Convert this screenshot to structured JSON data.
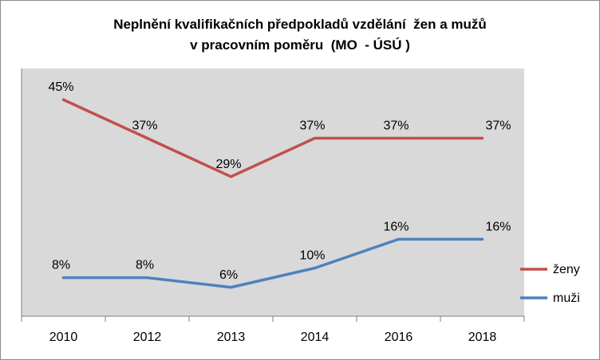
{
  "chart_data": {
    "type": "line",
    "title_line1": "Neplnění kvalifikačních předpokladů vzdělání  žen a mužů",
    "title_line2": "v pracovním poměru  (MO  - ÚSÚ )",
    "categories": [
      "2010",
      "2012",
      "2013",
      "2014",
      "2016",
      "2018"
    ],
    "series": [
      {
        "name": "ženy",
        "values": [
          45,
          37,
          29,
          37,
          37,
          37
        ],
        "data_labels": [
          "45%",
          "37%",
          "29%",
          "37%",
          "37%",
          "37%"
        ],
        "color": "#c0504d"
      },
      {
        "name": "muži",
        "values": [
          8,
          8,
          6,
          10,
          16,
          16
        ],
        "data_labels": [
          "8%",
          "8%",
          "6%",
          "10%",
          "16%",
          "16%"
        ],
        "color": "#4f81bd"
      }
    ],
    "ylim": [
      0,
      50
    ],
    "plot_background": "#d9d9d9",
    "grid": false,
    "legend_position": "right"
  }
}
